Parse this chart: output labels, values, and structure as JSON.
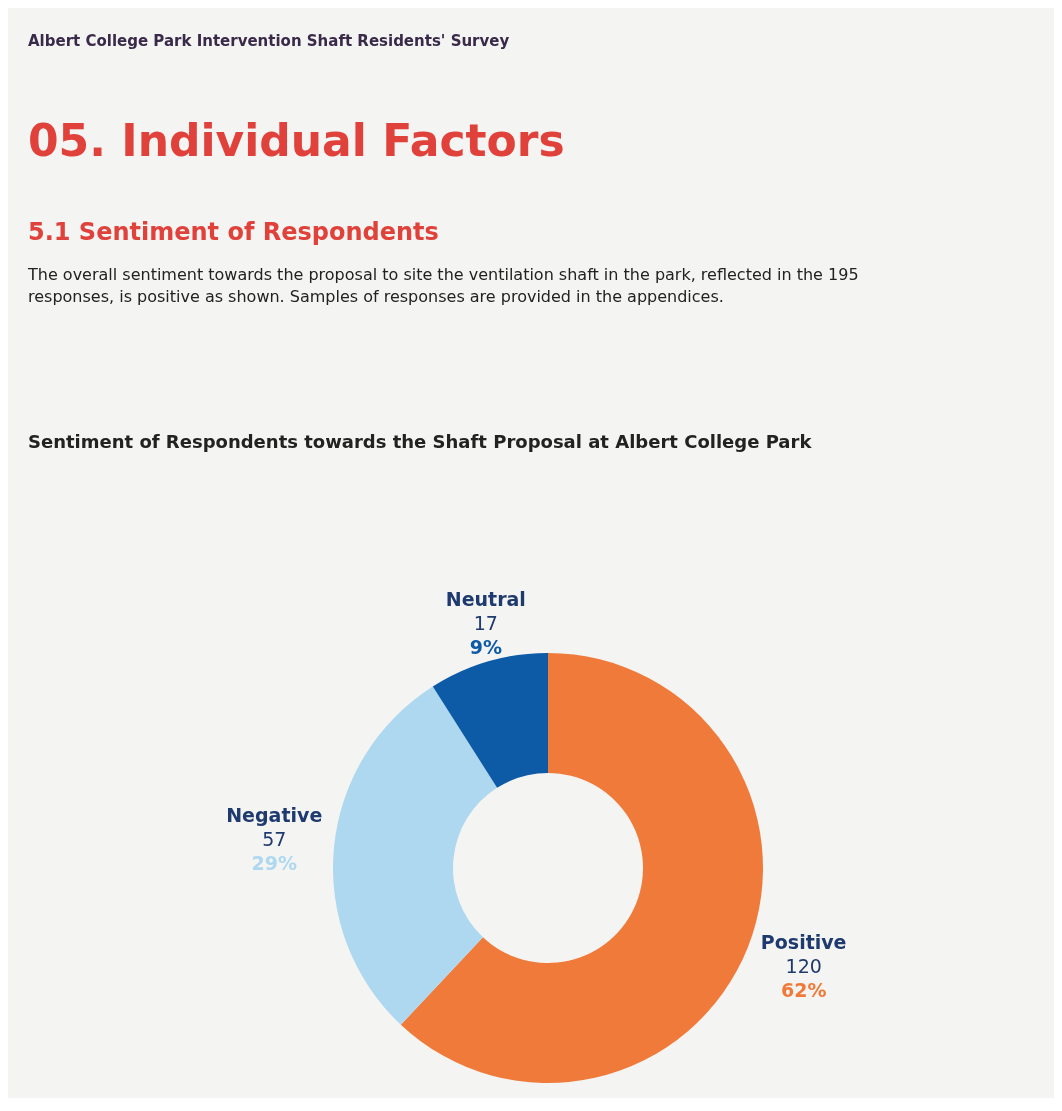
{
  "chart_data": {
    "type": "donut",
    "title": "Sentiment of Respondents towards the Shaft Proposal at Albert College Park",
    "categories": [
      "Positive",
      "Negative",
      "Neutral"
    ],
    "values": [
      62,
      29,
      9
    ],
    "colors": [
      "#f07a3a",
      "#aed8f0",
      "#0d5aa7"
    ],
    "value_labels": [
      "62%",
      "29%",
      "9%"
    ],
    "annotations": [
      "Albert College Park Intervention Shaft Residents' Survey",
      "05. Individual Factors",
      "5.1   Sentiment of Respondents",
      "The overall sentiment towards the proposal to site the ventilation shaft in the park, reflected in the 195 responses, is positive as shown. Samples of responses are provided in the appendices.",
      {
        "text": "120",
        "x": "Positive"
      },
      {
        "text": "57",
        "x": "Negative"
      },
      {
        "text": "17",
        "x": "Neutral"
      }
    ]
  }
}
